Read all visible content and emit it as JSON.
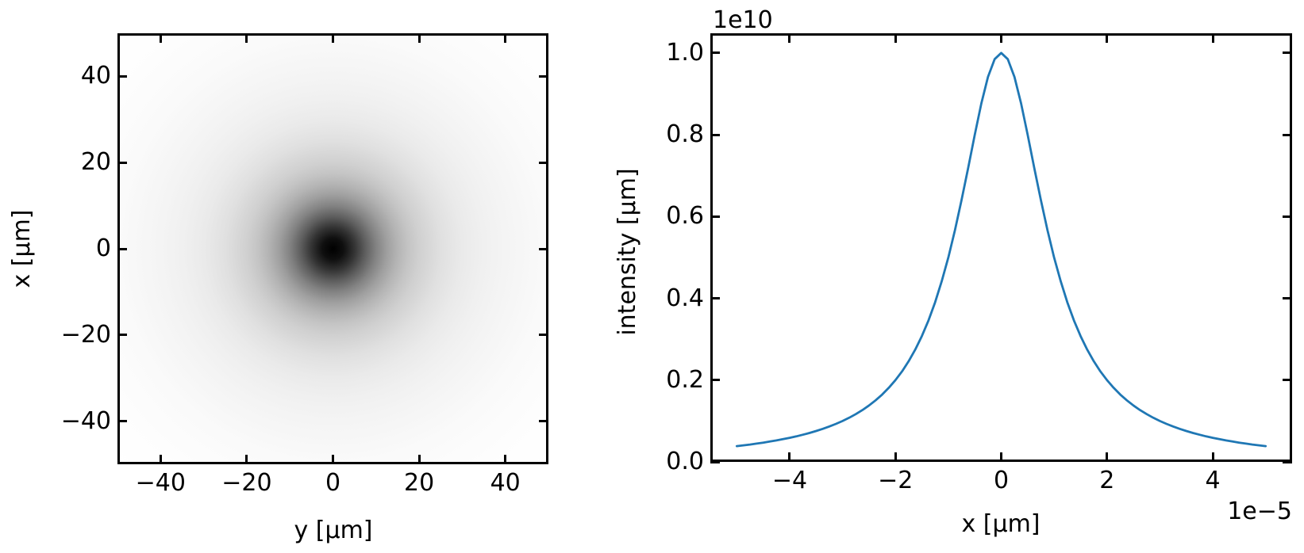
{
  "figure": {
    "background_color": "#ffffff",
    "text_color": "#000000",
    "tick_direction": "in",
    "ticks_on_all_sides": true
  },
  "chart_data": [
    {
      "type": "heatmap",
      "panel": "left",
      "title": "",
      "xlabel": "y [μm]",
      "ylabel": "x [μm]",
      "xlim": [
        -50,
        50
      ],
      "ylim": [
        -50,
        50
      ],
      "xticks": [
        -40,
        -20,
        0,
        20,
        40
      ],
      "xtick_labels": [
        "−40",
        "−20",
        "0",
        "20",
        "40"
      ],
      "yticks": [
        40,
        20,
        0,
        -20,
        -40
      ],
      "ytick_labels": [
        "40",
        "20",
        "0",
        "−20",
        "−40"
      ],
      "colormap": "Greys (white = low intensity, black = high intensity)",
      "peak_center": {
        "x_um": 0,
        "y_um": 0
      },
      "profile_shape": "radially symmetric Lorentzian-like spot",
      "hwhm_um": 10,
      "radial_profile": {
        "radius_um": [
          0,
          2.5,
          5,
          7.5,
          10,
          12.5,
          15,
          17.5,
          20,
          25,
          30,
          35,
          40,
          50,
          60,
          70.7
        ],
        "normalized_intensity": [
          1.0,
          0.941,
          0.8,
          0.64,
          0.5,
          0.39,
          0.308,
          0.246,
          0.2,
          0.138,
          0.1,
          0.0755,
          0.0588,
          0.0385,
          0.027,
          0.02
        ]
      },
      "gradient_stops": [
        {
          "pct": 0,
          "color": "#000000"
        },
        {
          "pct": 3.5,
          "color": "#0f0f0f"
        },
        {
          "pct": 7.1,
          "color": "#343434"
        },
        {
          "pct": 10.6,
          "color": "#5e5e5e"
        },
        {
          "pct": 14.1,
          "color": "#828282"
        },
        {
          "pct": 17.7,
          "color": "#9f9f9f"
        },
        {
          "pct": 21.2,
          "color": "#b4b4b4"
        },
        {
          "pct": 24.7,
          "color": "#c4c4c4"
        },
        {
          "pct": 28.3,
          "color": "#d0d0d0"
        },
        {
          "pct": 35.4,
          "color": "#e0e0e0"
        },
        {
          "pct": 42.4,
          "color": "#eaeaea"
        },
        {
          "pct": 49.5,
          "color": "#f0f0f0"
        },
        {
          "pct": 56.6,
          "color": "#f4f4f4"
        },
        {
          "pct": 70.7,
          "color": "#fafafa"
        },
        {
          "pct": 84.9,
          "color": "#fdfdfd"
        },
        {
          "pct": 100,
          "color": "#ffffff"
        }
      ]
    },
    {
      "type": "line",
      "panel": "right",
      "title": "",
      "xlabel": "x [μm]",
      "ylabel": "intensity [μm]",
      "y_offset_text": "1e10",
      "x_offset_text": "1e−5",
      "x_units": "1e-5 μm",
      "y_units": "1e10",
      "xlim": [
        -5.5,
        5.5
      ],
      "ylim": [
        0,
        1.048
      ],
      "xticks": [
        -4,
        -2,
        0,
        2,
        4
      ],
      "xtick_labels": [
        "−4",
        "−2",
        "0",
        "2",
        "4"
      ],
      "yticks": [
        0,
        0.2,
        0.4,
        0.6,
        0.8,
        1.0
      ],
      "ytick_labels": [
        "0.0",
        "0.2",
        "0.4",
        "0.6",
        "0.8",
        "1.0"
      ],
      "line_color": "#1f77b4",
      "line_width": 2.8,
      "peak_value_1e10": 1.0,
      "hwhm_in_1e-5_um": 1.0,
      "curve_shape": "Lorentzian 1/(1+x^2)",
      "x": [
        -5,
        -4.875,
        -4.75,
        -4.625,
        -4.5,
        -4.375,
        -4.25,
        -4.125,
        -4,
        -3.875,
        -3.75,
        -3.625,
        -3.5,
        -3.375,
        -3.25,
        -3.125,
        -3,
        -2.875,
        -2.75,
        -2.625,
        -2.5,
        -2.375,
        -2.25,
        -2.125,
        -2,
        -1.875,
        -1.75,
        -1.625,
        -1.5,
        -1.375,
        -1.25,
        -1.125,
        -1,
        -0.875,
        -0.75,
        -0.625,
        -0.5,
        -0.375,
        -0.25,
        -0.125,
        0,
        0.125,
        0.25,
        0.375,
        0.5,
        0.625,
        0.75,
        0.875,
        1,
        1.125,
        1.25,
        1.375,
        1.5,
        1.625,
        1.75,
        1.875,
        2,
        2.125,
        2.25,
        2.375,
        2.5,
        2.625,
        2.75,
        2.875,
        3,
        3.125,
        3.25,
        3.375,
        3.5,
        3.625,
        3.75,
        3.875,
        4,
        4.125,
        4.25,
        4.375,
        4.5,
        4.625,
        4.75,
        4.875,
        5
      ],
      "y": [
        0.0385,
        0.0404,
        0.0424,
        0.0447,
        0.0471,
        0.0497,
        0.0525,
        0.0555,
        0.0588,
        0.0624,
        0.0664,
        0.0707,
        0.0755,
        0.0807,
        0.0865,
        0.0929,
        0.1,
        0.1079,
        0.1168,
        0.1267,
        0.1379,
        0.1506,
        0.1649,
        0.1813,
        0.2,
        0.2215,
        0.2462,
        0.2747,
        0.3077,
        0.3459,
        0.3902,
        0.4414,
        0.5,
        0.5664,
        0.64,
        0.7191,
        0.8,
        0.8767,
        0.9412,
        0.9846,
        1.0,
        0.9846,
        0.9412,
        0.8767,
        0.8,
        0.7191,
        0.64,
        0.5664,
        0.5,
        0.4414,
        0.3902,
        0.3459,
        0.3077,
        0.2747,
        0.2462,
        0.2215,
        0.2,
        0.1813,
        0.1649,
        0.1506,
        0.1379,
        0.1267,
        0.1168,
        0.1079,
        0.1,
        0.0929,
        0.0865,
        0.0807,
        0.0755,
        0.0707,
        0.0664,
        0.0624,
        0.0588,
        0.0555,
        0.0525,
        0.0497,
        0.0471,
        0.0447,
        0.0424,
        0.0404,
        0.0385
      ]
    }
  ]
}
